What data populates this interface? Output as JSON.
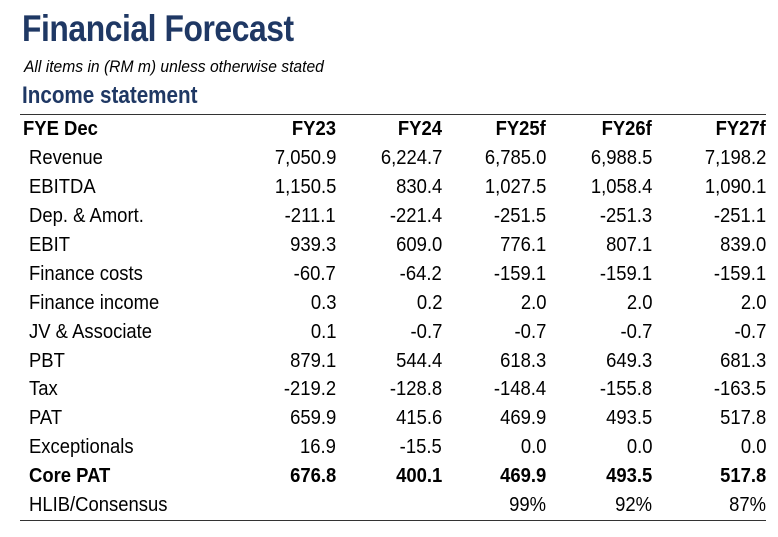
{
  "header": {
    "title": "Financial Forecast",
    "subtitle": "All items in (RM m) unless otherwise stated",
    "section": "Income statement"
  },
  "table": {
    "columns": [
      "FYE Dec",
      "FY23",
      "FY24",
      "FY25f",
      "FY26f",
      "FY27f"
    ],
    "rows": [
      {
        "label": "Revenue",
        "values": [
          "7,050.9",
          "6,224.7",
          "6,785.0",
          "6,988.5",
          "7,198.2"
        ],
        "bold": false
      },
      {
        "label": "EBITDA",
        "values": [
          "1,150.5",
          "830.4",
          "1,027.5",
          "1,058.4",
          "1,090.1"
        ],
        "bold": false
      },
      {
        "label": "Dep. & Amort.",
        "values": [
          "-211.1",
          "-221.4",
          "-251.5",
          "-251.3",
          "-251.1"
        ],
        "bold": false
      },
      {
        "label": "EBIT",
        "values": [
          "939.3",
          "609.0",
          "776.1",
          "807.1",
          "839.0"
        ],
        "bold": false
      },
      {
        "label": "Finance costs",
        "values": [
          "-60.7",
          "-64.2",
          "-159.1",
          "-159.1",
          "-159.1"
        ],
        "bold": false
      },
      {
        "label": "Finance income",
        "values": [
          "0.3",
          "0.2",
          "2.0",
          "2.0",
          "2.0"
        ],
        "bold": false
      },
      {
        "label": "JV & Associate",
        "values": [
          "0.1",
          "-0.7",
          "-0.7",
          "-0.7",
          "-0.7"
        ],
        "bold": false
      },
      {
        "label": "PBT",
        "values": [
          "879.1",
          "544.4",
          "618.3",
          "649.3",
          "681.3"
        ],
        "bold": false
      },
      {
        "label": "Tax",
        "values": [
          "-219.2",
          "-128.8",
          "-148.4",
          "-155.8",
          "-163.5"
        ],
        "bold": false
      },
      {
        "label": "PAT",
        "values": [
          "659.9",
          "415.6",
          "469.9",
          "493.5",
          "517.8"
        ],
        "bold": false
      },
      {
        "label": "Exceptionals",
        "values": [
          "16.9",
          "-15.5",
          "0.0",
          "0.0",
          "0.0"
        ],
        "bold": false
      },
      {
        "label": "Core PAT",
        "values": [
          "676.8",
          "400.1",
          "469.9",
          "493.5",
          "517.8"
        ],
        "bold": true
      },
      {
        "label": "HLIB/Consensus",
        "values": [
          "",
          "",
          "99%",
          "92%",
          "87%"
        ],
        "bold": false
      }
    ]
  }
}
